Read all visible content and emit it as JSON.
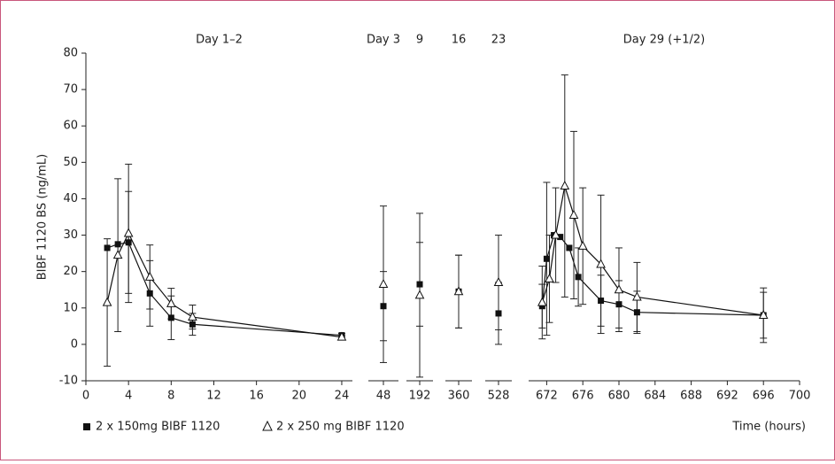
{
  "chart_data": {
    "type": "line",
    "y_label": "BIBF 1120 BS (ng/mL)",
    "x_label": "Time (hours)",
    "ylim": [
      -10,
      80
    ],
    "yticks": [
      -10,
      0,
      10,
      20,
      30,
      40,
      50,
      60,
      70,
      80
    ],
    "x_segments": [
      {
        "label": "Day 1–2",
        "xlim": [
          0,
          25
        ],
        "xticks": [
          0,
          4,
          8,
          12,
          16,
          20,
          24
        ]
      },
      {
        "label": "Day 3",
        "xlim": [
          44,
          52
        ],
        "xticks": [
          48
        ]
      },
      {
        "label": "9",
        "xlim": [
          184,
          200
        ],
        "xticks": [
          192
        ]
      },
      {
        "label": "16",
        "xlim": [
          352,
          368
        ],
        "xticks": [
          360
        ]
      },
      {
        "label": "23",
        "xlim": [
          520,
          536
        ],
        "xticks": [
          528
        ]
      },
      {
        "label": "Day 29 (+1/2)",
        "xlim": [
          670,
          700
        ],
        "xticks": [
          672,
          676,
          680,
          684,
          688,
          692,
          696,
          700
        ]
      }
    ],
    "series": [
      {
        "name": "2 x 150mg BIBF 1120",
        "marker": "square",
        "color": "#111111",
        "x": [
          2,
          3,
          4,
          6,
          8,
          10,
          24,
          48,
          192,
          360,
          528,
          671.5,
          672,
          672.8,
          673.5,
          674.5,
          675.5,
          678,
          680,
          682,
          696
        ],
        "values": [
          26.5,
          27.5,
          28,
          14,
          7.3,
          5.5,
          2.5,
          10.5,
          16.5,
          14.5,
          8.5,
          10.5,
          23.5,
          30,
          29.5,
          26.5,
          18.5,
          12,
          11,
          8.8,
          8
        ],
        "errors": [
          null,
          null,
          14,
          9,
          6,
          3,
          0.5,
          9.5,
          11.5,
          10,
          8.5,
          6,
          21,
          null,
          null,
          null,
          8,
          7,
          6.5,
          5.8,
          7.5
        ]
      },
      {
        "name": "2 x 250 mg BIBF 1120",
        "marker": "triangle",
        "color": "#111111",
        "x": [
          2,
          3,
          4,
          6,
          8,
          10,
          24,
          48,
          192,
          360,
          528,
          671.5,
          672.3,
          673,
          674,
          675,
          676,
          678,
          680,
          682,
          696
        ],
        "values": [
          11.5,
          24.5,
          30.5,
          18.5,
          11.2,
          7.5,
          2,
          16.5,
          13.5,
          14.5,
          17,
          11.5,
          18,
          30,
          43.5,
          35.5,
          27,
          22,
          15,
          13,
          8
        ],
        "errors": [
          17.5,
          21,
          19,
          8.8,
          4.2,
          3.3,
          0.5,
          21.5,
          22.5,
          10,
          13,
          10,
          12,
          13,
          30.5,
          23,
          16,
          19,
          11.5,
          9.5,
          6.3
        ]
      }
    ]
  }
}
